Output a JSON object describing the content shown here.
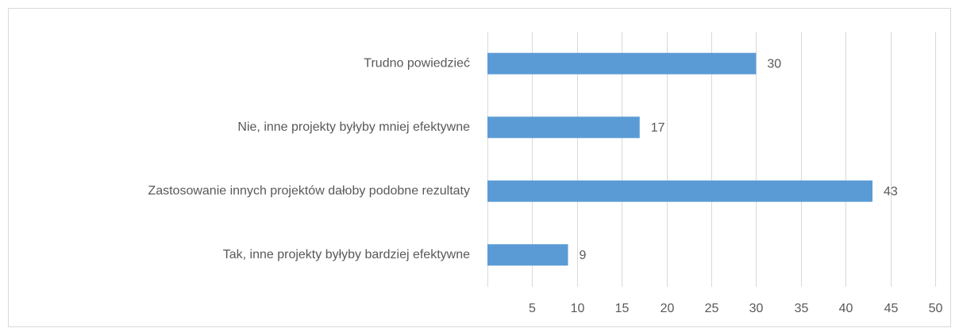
{
  "chart_data": {
    "type": "bar",
    "orientation": "horizontal",
    "categories": [
      "Trudno powiedzieć",
      "Nie, inne projekty byłyby mniej efektywne",
      "Zastosowanie innych projektów dałoby podobne rezultaty",
      "Tak, inne projekty byłyby bardziej efektywne"
    ],
    "values": [
      30,
      17,
      43,
      9
    ],
    "color": "#5b9bd5",
    "xlim": [
      0,
      50
    ],
    "xticks": [
      5,
      10,
      15,
      20,
      25,
      30,
      35,
      40,
      45,
      50
    ],
    "grid": true
  }
}
